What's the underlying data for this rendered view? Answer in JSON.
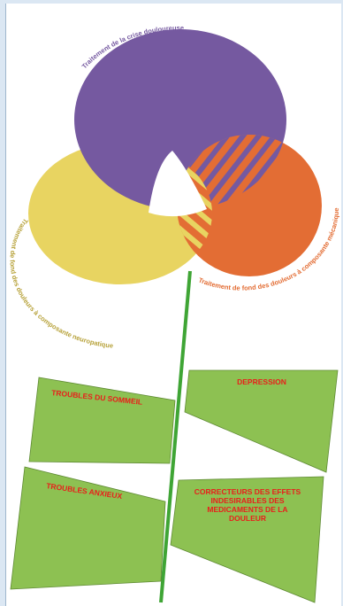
{
  "diagram": {
    "petals": {
      "crisis": {
        "label": "Traitement de la crise douloureuse",
        "color": "#7559a0"
      },
      "neuropathic": {
        "label": "Traitement de fond des douleurs à composante neuropatique",
        "color": "#e8d461"
      },
      "mechanical": {
        "label": "Traitement de fond des douleurs à composante mécanique",
        "color": "#e36d34"
      }
    },
    "stem_color": "#3fa535",
    "leaves": {
      "color": "#8dc152",
      "sleep": "TROUBLES DU SOMMEIL",
      "depression": "DEPRESSION",
      "anxiety": "TROUBLES ANXIEUX",
      "correctors": [
        "CORRECTEURS DES EFFETS",
        "INDESIRABLES DES",
        "MEDICAMENTS DE LA",
        "DOULEUR"
      ]
    }
  }
}
